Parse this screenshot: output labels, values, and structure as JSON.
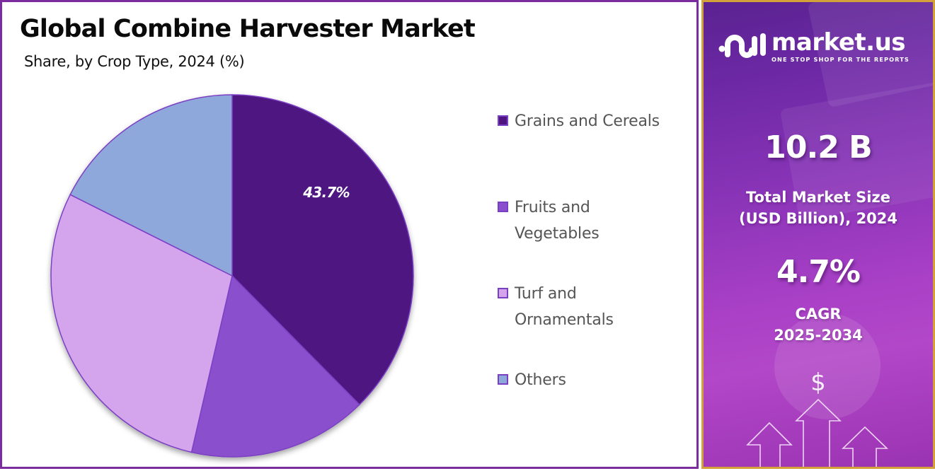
{
  "header": {
    "title": "Global Combine Harvester Market",
    "subtitle": "Share, by Crop Type, 2024 (%)"
  },
  "chart_data": {
    "type": "pie",
    "title": "Global Combine Harvester Market",
    "subtitle": "Share, by Crop Type, 2024 (%)",
    "categories": [
      "Grains and Cereals",
      "Fruits and Vegetables",
      "Turf and Ornamentals",
      "Others"
    ],
    "values": [
      43.7,
      14.0,
      26.5,
      15.8
    ],
    "labeled_values": {
      "Grains and Cereals": 43.7
    },
    "drawn_share_estimate": [
      37.6,
      16.0,
      28.8,
      17.6
    ],
    "colors": [
      "#4e1581",
      "#8a4fcc",
      "#d4a5ec",
      "#8ea8dc"
    ],
    "start_angle_deg": 0,
    "direction": "clockwise",
    "data_labels": [
      {
        "category": "Grains and Cereals",
        "text": "43.7%"
      }
    ],
    "legend_position": "right"
  },
  "legend": {
    "items": [
      {
        "label": "Grains and Cereals",
        "color": "#4e1581"
      },
      {
        "label": "Fruits and Vegetables",
        "color": "#8a4fcc"
      },
      {
        "label": "Turf and Ornamentals",
        "color": "#d4a5ec"
      },
      {
        "label": "Others",
        "color": "#8ea8dc"
      }
    ]
  },
  "sidebar": {
    "brand_name": "market.us",
    "brand_tagline": "ONE STOP SHOP FOR THE REPORTS",
    "market_size_value": "10.2 B",
    "market_size_label_line1": "Total Market Size",
    "market_size_label_line2": "(USD Billion), 2024",
    "cagr_value": "4.7%",
    "cagr_label_line1": "CAGR",
    "cagr_label_line2": "2025-2034",
    "dollar_symbol": "$"
  },
  "colors": {
    "frame_left": "#7b2c9e",
    "frame_right": "#d4a03a",
    "slice_stroke": "#7b3fc4"
  }
}
